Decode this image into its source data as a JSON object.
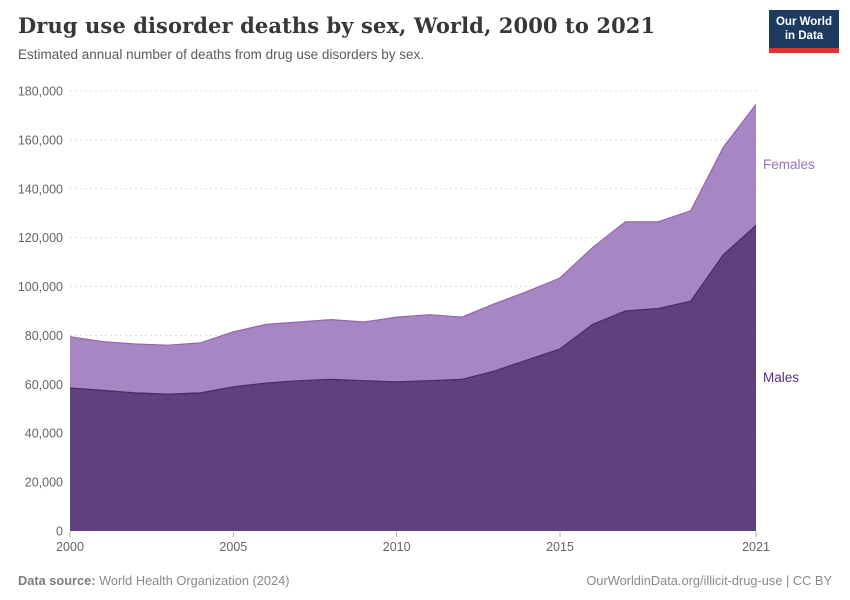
{
  "header": {
    "title": "Drug use disorder deaths by sex, World, 2000 to 2021",
    "subtitle": "Estimated annual number of deaths from drug use disorders by sex.",
    "logo": {
      "line1": "Our World",
      "line2": "in Data",
      "bg": "#1d3a5f",
      "accent": "#dc352c"
    }
  },
  "footer": {
    "source_label": "Data source:",
    "source_value": " World Health Organization (2024)",
    "link": "OurWorldinData.org/illicit-drug-use | CC BY"
  },
  "chart_data": {
    "type": "area",
    "stacked": true,
    "title": "Drug use disorder deaths by sex, World, 2000 to 2021",
    "xlabel": "",
    "ylabel": "",
    "x": [
      2000,
      2001,
      2002,
      2003,
      2004,
      2005,
      2006,
      2007,
      2008,
      2009,
      2010,
      2011,
      2012,
      2013,
      2014,
      2015,
      2016,
      2017,
      2018,
      2019,
      2020,
      2021
    ],
    "series": [
      {
        "name": "Males",
        "values": [
          58500,
          57500,
          56500,
          56000,
          56500,
          59000,
          60500,
          61500,
          62000,
          61500,
          61000,
          61500,
          62000,
          65500,
          70000,
          74500,
          84500,
          90000,
          91000,
          94000,
          113000,
          125000
        ],
        "fill": "#5f4080",
        "stroke": "#4a2b66",
        "label_color": "#55307a"
      },
      {
        "name": "Females",
        "values": [
          21000,
          20000,
          20000,
          20000,
          20500,
          22500,
          24000,
          24000,
          24500,
          24000,
          26500,
          27000,
          25500,
          27500,
          28000,
          29000,
          31500,
          36500,
          35500,
          37000,
          44000,
          49500
        ],
        "fill": "#a687c3",
        "stroke": "#9168b2",
        "label_color": "#9b71b9"
      }
    ],
    "ylim": [
      0,
      180000
    ],
    "ytick_step": 20000,
    "ytick_labels": [
      "0",
      "20,000",
      "40,000",
      "60,000",
      "80,000",
      "100,000",
      "120,000",
      "140,000",
      "160,000",
      "180,000"
    ],
    "xticks": [
      2000,
      2005,
      2010,
      2015,
      2021
    ],
    "grid": "horizontal-dashed",
    "grid_color": "#dedede",
    "tick_text_color": "#666666",
    "legend_position": "right-of-plot"
  }
}
